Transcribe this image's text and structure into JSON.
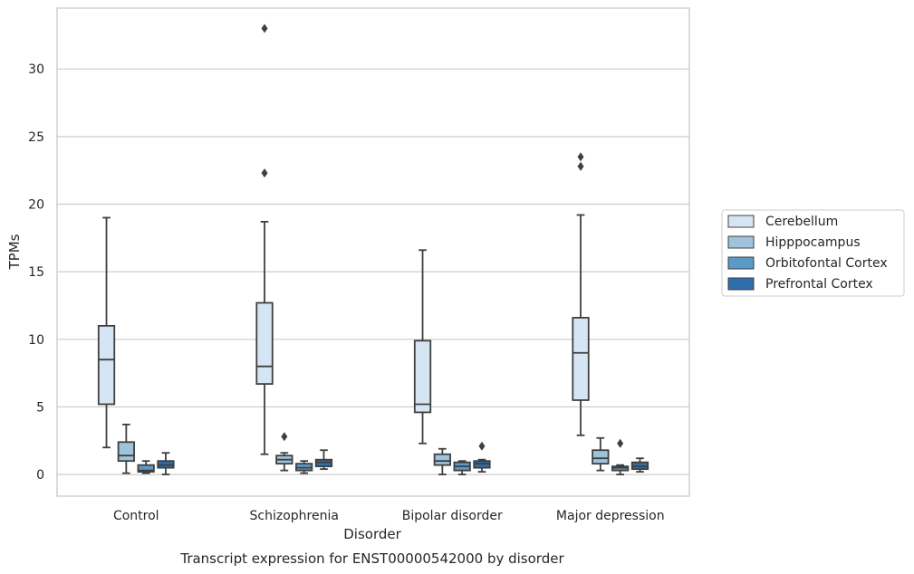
{
  "caption": "Transcript expression for ENST00000542000 by disorder",
  "chart_data": {
    "type": "box",
    "title": "",
    "xlabel": "Disorder",
    "ylabel": "TPMs",
    "ylim": [
      -1.6,
      34.5
    ],
    "yticks": [
      0,
      5,
      10,
      15,
      20,
      25,
      30
    ],
    "grid": "horizontal",
    "legend_position": "outside-right",
    "categories": [
      "Control",
      "Schizophrenia",
      "Bipolar disorder",
      "Major depression"
    ],
    "series": [
      {
        "name": "Cerebellum",
        "color": "#d6e5f3",
        "boxes": [
          {
            "whislo": 2.0,
            "q1": 5.2,
            "med": 8.5,
            "q3": 11.0,
            "whishi": 19.0,
            "fliers": []
          },
          {
            "whislo": 1.5,
            "q1": 6.7,
            "med": 8.0,
            "q3": 12.7,
            "whishi": 18.7,
            "fliers": [
              22.3,
              33.0
            ]
          },
          {
            "whislo": 2.3,
            "q1": 4.6,
            "med": 5.2,
            "q3": 9.9,
            "whishi": 16.6,
            "fliers": []
          },
          {
            "whislo": 2.9,
            "q1": 5.5,
            "med": 9.0,
            "q3": 11.6,
            "whishi": 19.2,
            "fliers": [
              22.8,
              23.5
            ]
          }
        ]
      },
      {
        "name": "Hipppocampus",
        "color": "#9ec4dd",
        "boxes": [
          {
            "whislo": 0.1,
            "q1": 1.0,
            "med": 1.4,
            "q3": 2.4,
            "whishi": 3.7,
            "fliers": []
          },
          {
            "whislo": 0.3,
            "q1": 0.8,
            "med": 1.1,
            "q3": 1.4,
            "whishi": 1.6,
            "fliers": [
              2.8
            ]
          },
          {
            "whislo": 0.0,
            "q1": 0.7,
            "med": 1.0,
            "q3": 1.5,
            "whishi": 1.9,
            "fliers": []
          },
          {
            "whislo": 0.3,
            "q1": 0.8,
            "med": 1.2,
            "q3": 1.8,
            "whishi": 2.7,
            "fliers": []
          }
        ]
      },
      {
        "name": "Orbitofontal Cortex",
        "color": "#5a9ac8",
        "boxes": [
          {
            "whislo": 0.1,
            "q1": 0.2,
            "med": 0.3,
            "q3": 0.7,
            "whishi": 1.0,
            "fliers": []
          },
          {
            "whislo": 0.1,
            "q1": 0.3,
            "med": 0.5,
            "q3": 0.8,
            "whishi": 1.0,
            "fliers": []
          },
          {
            "whislo": 0.0,
            "q1": 0.3,
            "med": 0.6,
            "q3": 0.9,
            "whishi": 1.0,
            "fliers": []
          },
          {
            "whislo": 0.0,
            "q1": 0.3,
            "med": 0.5,
            "q3": 0.6,
            "whishi": 0.7,
            "fliers": [
              2.3
            ]
          }
        ]
      },
      {
        "name": "Prefrontal Cortex",
        "color": "#2d6ead",
        "boxes": [
          {
            "whislo": 0.0,
            "q1": 0.5,
            "med": 0.7,
            "q3": 1.0,
            "whishi": 1.6,
            "fliers": []
          },
          {
            "whislo": 0.4,
            "q1": 0.6,
            "med": 0.9,
            "q3": 1.1,
            "whishi": 1.8,
            "fliers": []
          },
          {
            "whislo": 0.2,
            "q1": 0.5,
            "med": 0.8,
            "q3": 1.0,
            "whishi": 1.1,
            "fliers": [
              2.1
            ]
          },
          {
            "whislo": 0.2,
            "q1": 0.4,
            "med": 0.6,
            "q3": 0.9,
            "whishi": 1.2,
            "fliers": []
          }
        ]
      }
    ]
  }
}
